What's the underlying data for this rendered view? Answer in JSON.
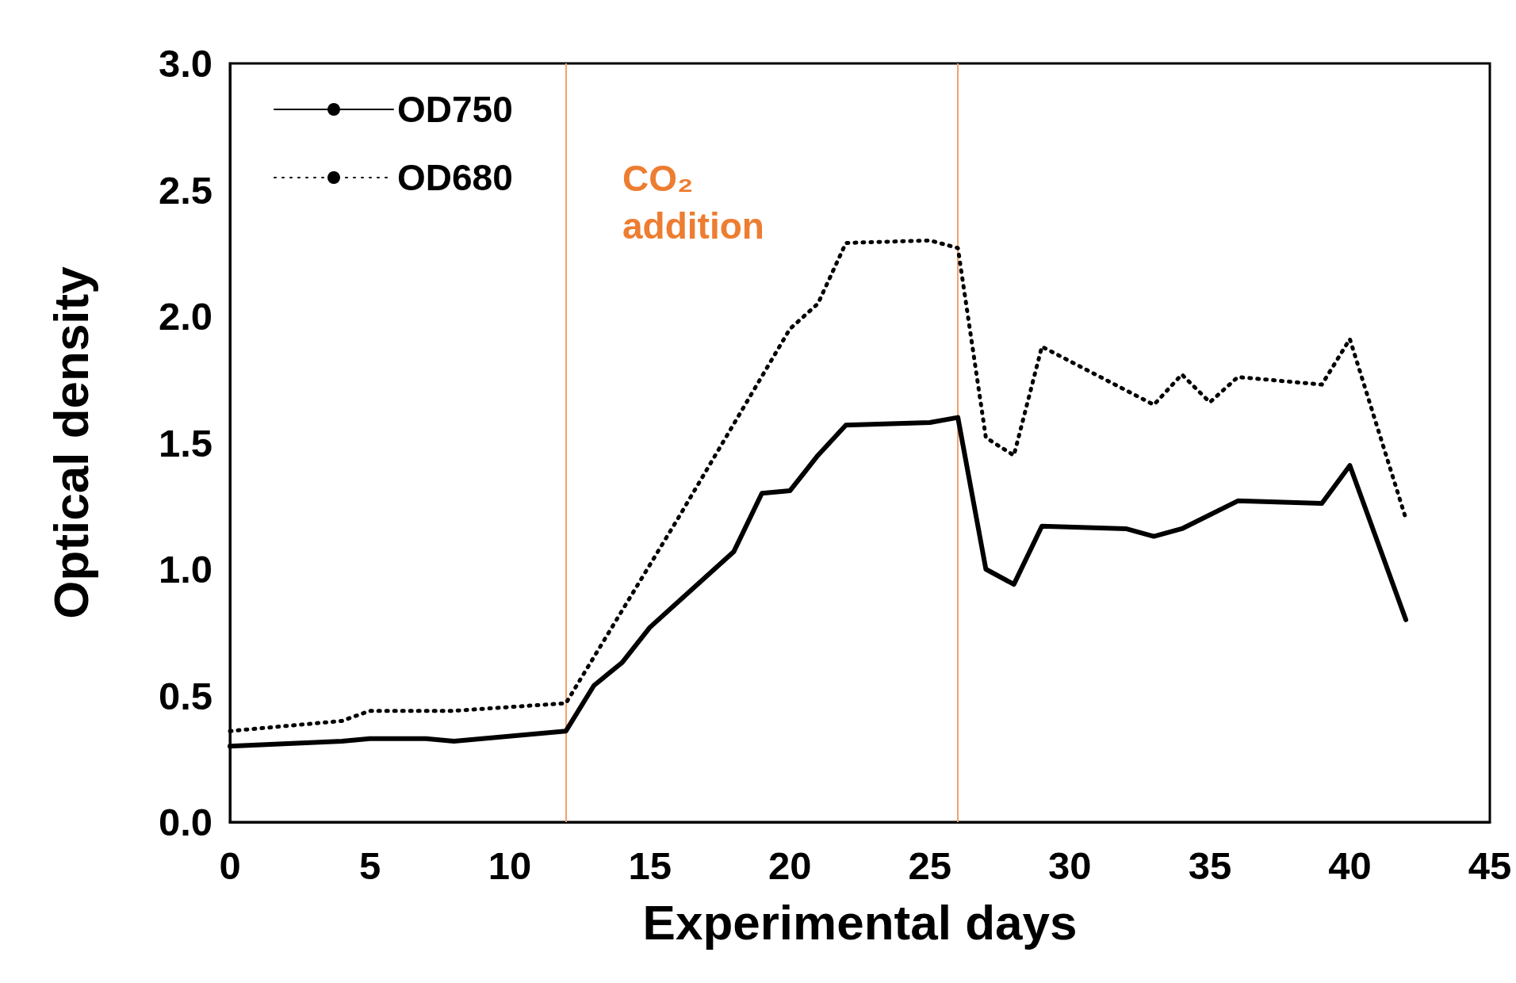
{
  "chart_data": {
    "type": "line",
    "xlabel": "Experimental days",
    "ylabel": "Optical density",
    "x": [
      0,
      4,
      5,
      7,
      8,
      12,
      13,
      14,
      15,
      18,
      19,
      20,
      21,
      22,
      25,
      26,
      27,
      28,
      29,
      32,
      33,
      34,
      36,
      39,
      40,
      42
    ],
    "series": [
      {
        "name": "OD750",
        "color": "#000000",
        "line_style": "solid",
        "values": [
          0.3,
          0.32,
          0.33,
          0.33,
          0.32,
          0.36,
          0.54,
          0.63,
          0.77,
          1.07,
          1.3,
          1.31,
          1.45,
          1.57,
          1.58,
          1.6,
          1.0,
          0.94,
          1.17,
          1.16,
          1.13,
          1.16,
          1.27,
          1.26,
          1.41,
          0.8
        ]
      },
      {
        "name": "OD680",
        "color": "#000000",
        "line_style": "dotted",
        "x": [
          0,
          4,
          5,
          8,
          12,
          16,
          20,
          21,
          22,
          25,
          26,
          27,
          28,
          29,
          33,
          34,
          35,
          36,
          39,
          40,
          42
        ],
        "values": [
          0.36,
          0.4,
          0.44,
          0.44,
          0.47,
          1.2,
          1.95,
          2.05,
          2.29,
          2.3,
          2.27,
          1.52,
          1.45,
          1.88,
          1.65,
          1.77,
          1.66,
          1.76,
          1.73,
          1.91,
          1.2
        ]
      }
    ],
    "xlim": [
      0,
      45
    ],
    "xticks": [
      0,
      5,
      10,
      15,
      20,
      25,
      30,
      35,
      40,
      45
    ],
    "ylim": [
      0,
      3
    ],
    "yticks": [
      {
        "value": 0,
        "label": "0.0"
      },
      {
        "value": 0.5,
        "label": "0.5"
      },
      {
        "value": 1,
        "label": "1.0"
      },
      {
        "value": 1.5,
        "label": "1.5"
      },
      {
        "value": 2,
        "label": "2.0"
      },
      {
        "value": 2.5,
        "label": "2.5"
      },
      {
        "value": 3,
        "label": "3.0"
      }
    ],
    "ref_lines": [
      {
        "axis": "x",
        "value": 12,
        "color": "#f4a26b"
      },
      {
        "axis": "x",
        "value": 26,
        "color": "#f4a26b"
      }
    ],
    "annotations": [
      "CO₂ addition"
    ],
    "grid": false,
    "legend": "top left",
    "marker": "none"
  }
}
